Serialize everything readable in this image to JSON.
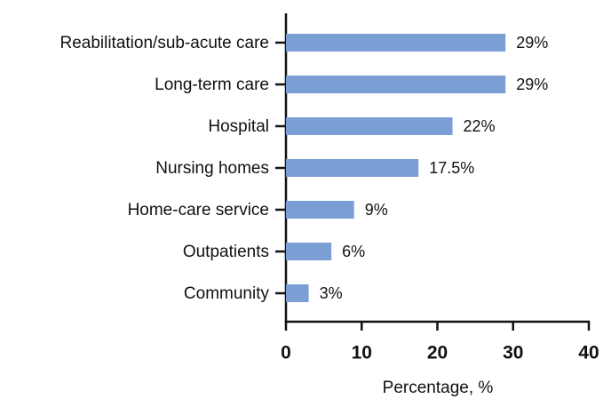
{
  "chart_data": {
    "type": "bar",
    "orientation": "horizontal",
    "categories": [
      "Reabilitation/sub-acute care",
      "Long-term care",
      "Hospital",
      "Nursing homes",
      "Home-care service",
      "Outpatients",
      "Community"
    ],
    "values": [
      29,
      29,
      22,
      17.5,
      9,
      6,
      3
    ],
    "value_labels": [
      "29%",
      "29%",
      "22%",
      "17.5%",
      "9%",
      "6%",
      "3%"
    ],
    "color": "#7b9fd4",
    "xlabel": "Percentage, %",
    "xlim": [
      0,
      40
    ],
    "xticks": [
      0,
      10,
      20,
      30,
      40
    ]
  }
}
